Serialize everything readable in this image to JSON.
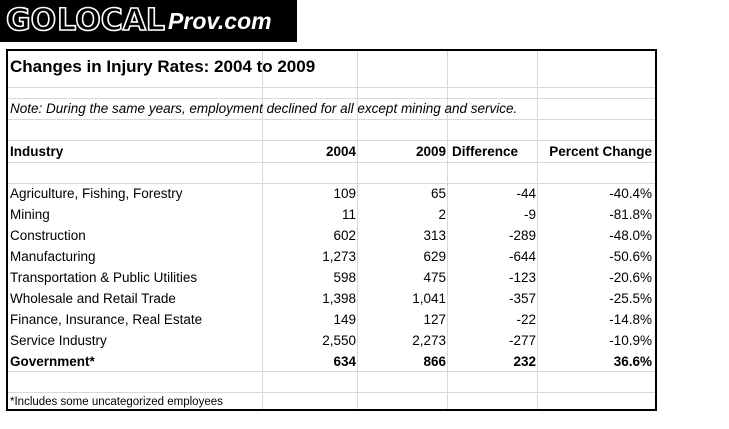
{
  "logo": {
    "go": "GO",
    "local": "LOCAL",
    "domain": "Prov.com"
  },
  "table": {
    "title": "Changes in Injury Rates: 2004 to 2009",
    "note": "Note: During the same years, employment declined for all except mining and service.",
    "headers": {
      "industry": "Industry",
      "y2004": "2004",
      "y2009": "2009",
      "difference": "Difference",
      "percent_change": "Percent Change"
    },
    "rows": [
      {
        "industry": "Agriculture, Fishing, Forestry",
        "y2004": "109",
        "y2009": "65",
        "difference": "-44",
        "percent_change": "-40.4%"
      },
      {
        "industry": "Mining",
        "y2004": "11",
        "y2009": "2",
        "difference": "-9",
        "percent_change": "-81.8%"
      },
      {
        "industry": "Construction",
        "y2004": "602",
        "y2009": "313",
        "difference": "-289",
        "percent_change": "-48.0%"
      },
      {
        "industry": "Manufacturing",
        "y2004": "1,273",
        "y2009": "629",
        "difference": "-644",
        "percent_change": "-50.6%"
      },
      {
        "industry": "Transportation & Public Utilities",
        "y2004": "598",
        "y2009": "475",
        "difference": "-123",
        "percent_change": "-20.6%"
      },
      {
        "industry": "Wholesale and Retail Trade",
        "y2004": "1,398",
        "y2009": "1,041",
        "difference": "-357",
        "percent_change": "-25.5%"
      },
      {
        "industry": "Finance, Insurance, Real Estate",
        "y2004": "149",
        "y2009": "127",
        "difference": "-22",
        "percent_change": "-14.8%"
      },
      {
        "industry": "Service Industry",
        "y2004": "2,550",
        "y2009": "2,273",
        "difference": "-277",
        "percent_change": "-10.9%"
      },
      {
        "industry": "Government*",
        "y2004": "634",
        "y2009": "866",
        "difference": "232",
        "percent_change": "36.6%"
      }
    ],
    "footnote": "*Includes some uncategorized employees"
  }
}
